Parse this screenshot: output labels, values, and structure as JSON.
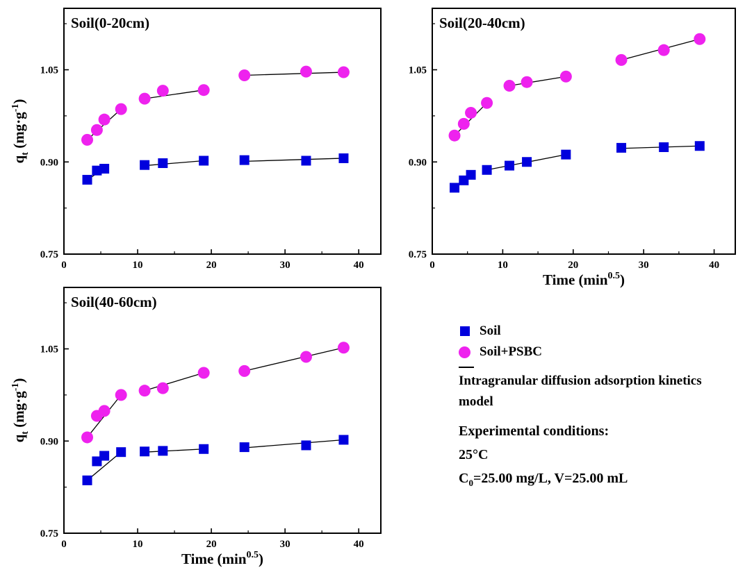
{
  "chart_data": [
    {
      "type": "scatter",
      "panel_label": "Soil(0-20cm)",
      "xlabel": "",
      "ylabel": "qt (mg·g-1)",
      "xlim": [
        0,
        43
      ],
      "ylim": [
        0.75,
        1.15
      ],
      "xticks": [
        0,
        10,
        20,
        30,
        40
      ],
      "yticks": [
        0.75,
        0.9,
        1.05
      ],
      "series": [
        {
          "name": "Soil",
          "marker": "square",
          "color": "#0000dd",
          "x": [
            3.16,
            4.47,
            5.48,
            10.95,
            13.42,
            18.97,
            24.49,
            32.86,
            37.95
          ],
          "y": [
            0.871,
            0.886,
            0.889,
            0.895,
            0.898,
            0.902,
            0.903,
            0.902,
            0.906
          ]
        },
        {
          "name": "Soil+PSBC",
          "marker": "circle",
          "color": "#ee22ee",
          "x": [
            3.16,
            4.47,
            5.48,
            7.75,
            10.95,
            13.42,
            18.97,
            24.49,
            32.86,
            37.95
          ],
          "y": [
            0.936,
            0.952,
            0.969,
            0.986,
            1.003,
            1.016,
            1.017,
            1.041,
            1.047,
            1.046
          ]
        }
      ],
      "fit_lines": [
        {
          "color": "#000",
          "points": [
            [
              3.16,
              0.871
            ],
            [
              5.48,
              0.889
            ]
          ]
        },
        {
          "color": "#000",
          "points": [
            [
              10.95,
              0.894
            ],
            [
              18.97,
              0.902
            ]
          ]
        },
        {
          "color": "#000",
          "points": [
            [
              24.49,
              0.901
            ],
            [
              37.95,
              0.906
            ]
          ]
        },
        {
          "color": "#000",
          "points": [
            [
              3.16,
              0.936
            ],
            [
              7.75,
              0.986
            ]
          ]
        },
        {
          "color": "#000",
          "points": [
            [
              10.95,
              1.003
            ],
            [
              18.97,
              1.017
            ]
          ]
        },
        {
          "color": "#000",
          "points": [
            [
              24.49,
              1.041
            ],
            [
              37.95,
              1.046
            ]
          ]
        }
      ]
    },
    {
      "type": "scatter",
      "panel_label": "Soil(20-40cm)",
      "xlabel": "Time (min0.5)",
      "ylabel": "",
      "xlim": [
        0,
        43
      ],
      "ylim": [
        0.75,
        1.15
      ],
      "xticks": [
        0,
        10,
        20,
        30,
        40
      ],
      "yticks": [
        0.75,
        0.9,
        1.05
      ],
      "series": [
        {
          "name": "Soil",
          "marker": "square",
          "color": "#0000dd",
          "x": [
            3.16,
            4.47,
            5.48,
            7.75,
            10.95,
            13.42,
            18.97,
            26.83,
            32.86,
            37.95
          ],
          "y": [
            0.858,
            0.87,
            0.879,
            0.887,
            0.894,
            0.9,
            0.912,
            0.923,
            0.924,
            0.926
          ]
        },
        {
          "name": "Soil+PSBC",
          "marker": "circle",
          "color": "#ee22ee",
          "x": [
            3.16,
            4.47,
            5.48,
            7.75,
            10.95,
            13.42,
            18.97,
            26.83,
            32.86,
            37.95
          ],
          "y": [
            0.943,
            0.962,
            0.98,
            0.996,
            1.024,
            1.03,
            1.039,
            1.066,
            1.082,
            1.1
          ]
        }
      ],
      "fit_lines": [
        {
          "color": "#000",
          "points": [
            [
              3.16,
              0.858
            ],
            [
              5.48,
              0.879
            ]
          ]
        },
        {
          "color": "#000",
          "points": [
            [
              7.75,
              0.887
            ],
            [
              18.97,
              0.912
            ]
          ]
        },
        {
          "color": "#000",
          "points": [
            [
              26.83,
              0.922
            ],
            [
              37.95,
              0.926
            ]
          ]
        },
        {
          "color": "#000",
          "points": [
            [
              3.16,
              0.943
            ],
            [
              7.75,
              0.996
            ]
          ]
        },
        {
          "color": "#000",
          "points": [
            [
              10.95,
              1.024
            ],
            [
              18.97,
              1.039
            ]
          ]
        },
        {
          "color": "#000",
          "points": [
            [
              26.83,
              1.066
            ],
            [
              37.95,
              1.1
            ]
          ]
        }
      ]
    },
    {
      "type": "scatter",
      "panel_label": "Soil(40-60cm)",
      "xlabel": "Time (min0.5)",
      "ylabel": "qt (mg·g-1)",
      "xlim": [
        0,
        43
      ],
      "ylim": [
        0.75,
        1.15
      ],
      "xticks": [
        0,
        10,
        20,
        30,
        40
      ],
      "yticks": [
        0.75,
        0.9,
        1.05
      ],
      "series": [
        {
          "name": "Soil",
          "marker": "square",
          "color": "#0000dd",
          "x": [
            3.16,
            4.47,
            5.48,
            7.75,
            10.95,
            13.42,
            18.97,
            24.49,
            32.86,
            37.95
          ],
          "y": [
            0.836,
            0.867,
            0.876,
            0.882,
            0.883,
            0.884,
            0.887,
            0.89,
            0.893,
            0.902
          ]
        },
        {
          "name": "Soil+PSBC",
          "marker": "circle",
          "color": "#ee22ee",
          "x": [
            3.16,
            4.47,
            5.48,
            7.75,
            10.95,
            13.42,
            18.97,
            24.49,
            32.86,
            37.95
          ],
          "y": [
            0.906,
            0.941,
            0.949,
            0.975,
            0.982,
            0.986,
            1.011,
            1.014,
            1.037,
            1.052
          ]
        }
      ],
      "fit_lines": [
        {
          "color": "#000",
          "points": [
            [
              3.16,
              0.836
            ],
            [
              7.75,
              0.882
            ]
          ]
        },
        {
          "color": "#000",
          "points": [
            [
              10.95,
              0.882
            ],
            [
              18.97,
              0.887
            ]
          ]
        },
        {
          "color": "#000",
          "points": [
            [
              24.49,
              0.889
            ],
            [
              37.95,
              0.902
            ]
          ]
        },
        {
          "color": "#000",
          "points": [
            [
              3.16,
              0.906
            ],
            [
              7.75,
              0.975
            ]
          ]
        },
        {
          "color": "#000",
          "points": [
            [
              10.95,
              0.982
            ],
            [
              18.97,
              1.011
            ]
          ]
        },
        {
          "color": "#000",
          "points": [
            [
              24.49,
              1.014
            ],
            [
              37.95,
              1.052
            ]
          ]
        }
      ]
    }
  ],
  "legend": {
    "soil_label": "Soil",
    "psbc_label": "Soil+PSBC",
    "model_label": "Intragranular diffusion adsorption kinetics model",
    "conditions_title": "Experimental conditions:",
    "temperature": "25°C",
    "concentration": "C0=25.00 mg/L, V=25.00 mL"
  }
}
